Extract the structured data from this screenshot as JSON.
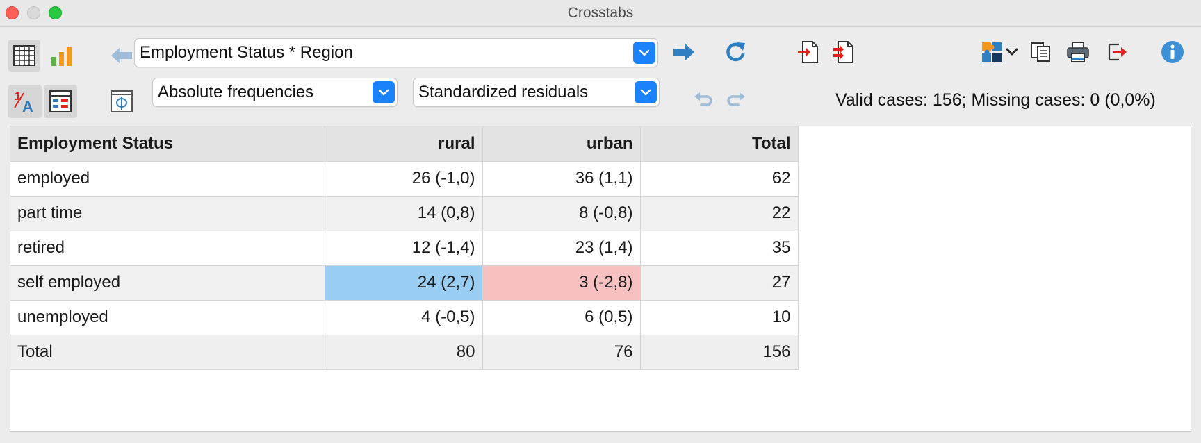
{
  "window": {
    "title": "Crosstabs"
  },
  "toolbar": {
    "variable_select": "Employment Status * Region",
    "frequency_select": "Absolute frequencies",
    "residual_select": "Standardized residuals",
    "status_text": "Valid cases: 156;  Missing cases: 0 (0,0%)"
  },
  "colors": {
    "accent": "#1a82fb",
    "positive_residual": "#99cdf2",
    "negative_residual": "#f7c1c1",
    "export_red": "#e0241b"
  },
  "table": {
    "headers": [
      "Employment Status",
      "rural",
      "urban",
      "Total"
    ],
    "rows": [
      {
        "label": "employed",
        "rural": "26 (-1,0)",
        "urban": "36 (1,1)",
        "total": "62"
      },
      {
        "label": "part time",
        "rural": "14 (0,8)",
        "urban": "8 (-0,8)",
        "total": "22"
      },
      {
        "label": "retired",
        "rural": "12 (-1,4)",
        "urban": "23 (1,4)",
        "total": "35"
      },
      {
        "label": "self employed",
        "rural": "24 (2,7)",
        "urban": "3 (-2,8)",
        "total": "27"
      },
      {
        "label": "unemployed",
        "rural": "4 (-0,5)",
        "urban": "6 (0,5)",
        "total": "10"
      }
    ],
    "total_row": {
      "label": "Total",
      "rural": "80",
      "urban": "76",
      "total": "156"
    }
  }
}
